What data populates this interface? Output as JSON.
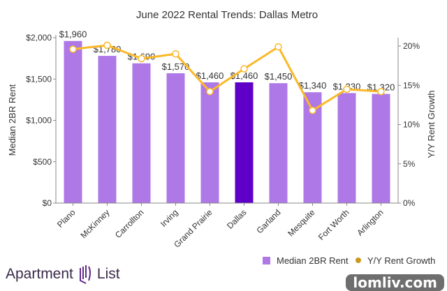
{
  "chart_data": {
    "type": "bar",
    "title": "June 2022 Rental Trends: Dallas Metro",
    "categories": [
      "Plano",
      "McKinney",
      "Carrollton",
      "Irving",
      "Grand Prairie",
      "Dallas",
      "Garland",
      "Mesquite",
      "Fort Worth",
      "Arlington"
    ],
    "series": [
      {
        "name": "Median 2BR Rent",
        "type": "bar",
        "axis": "left",
        "values": [
          1960,
          1780,
          1690,
          1570,
          1460,
          1460,
          1450,
          1340,
          1330,
          1320
        ],
        "labels": [
          "$1,960",
          "$1,780",
          "$1,690",
          "$1,570",
          "$1,460",
          "$1,460",
          "$1,450",
          "$1,340",
          "$1,330",
          "$1,320"
        ],
        "color": "#ae78e6",
        "highlight_category": "Dallas",
        "highlight_color": "#5f00c8"
      },
      {
        "name": "Y/Y Rent Growth",
        "type": "line",
        "axis": "right",
        "values": [
          19.6,
          20.1,
          18.4,
          19.0,
          14.2,
          17.1,
          19.9,
          11.8,
          14.5,
          14.2
        ],
        "color": "#fbb829"
      }
    ],
    "ylabel": "Median 2BR Rent",
    "y2label": "Y/Y Rent Growth",
    "ylim": [
      0,
      2000
    ],
    "y2lim": [
      0,
      20
    ],
    "yticks": [
      "$0",
      "$500",
      "$1,000",
      "$1,500",
      "$2,000"
    ],
    "y2ticks": [
      "0%",
      "5%",
      "10%",
      "15%",
      "20%"
    ],
    "grid": false,
    "legend": "bottom-right"
  },
  "branding": {
    "logo_left": "Apartment",
    "logo_right": "List",
    "watermark": "lomliv.com"
  }
}
